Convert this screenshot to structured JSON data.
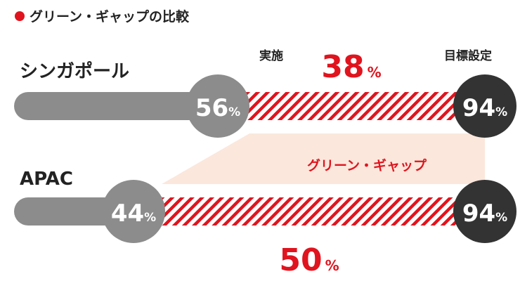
{
  "title": "グリーン・ギャップの比較",
  "headers": {
    "actual": "実施",
    "target": "目標設定"
  },
  "band_label": "グリーン・ギャップ",
  "percent_sign": "%",
  "colors": {
    "accent": "#e0141e",
    "bar": "#8c8c8c",
    "actual_circle": "#8c8c8c",
    "target_circle": "#333333",
    "band": "#fbe7dc"
  },
  "chart_data": {
    "type": "bar",
    "title": "グリーン・ギャップの比較",
    "categories": [
      "シンガポール",
      "APAC"
    ],
    "series": [
      {
        "name": "実施",
        "values": [
          56,
          44
        ]
      },
      {
        "name": "目標設定",
        "values": [
          94,
          94
        ]
      }
    ],
    "gaps": [
      38,
      50
    ],
    "gap_label": "グリーン・ギャップ",
    "unit": "%",
    "ylim": [
      0,
      100
    ]
  },
  "rows": [
    {
      "label": "シンガポール",
      "actual": "56",
      "target": "94",
      "gap": "38"
    },
    {
      "label": "APAC",
      "actual": "44",
      "target": "94",
      "gap": "50"
    }
  ]
}
